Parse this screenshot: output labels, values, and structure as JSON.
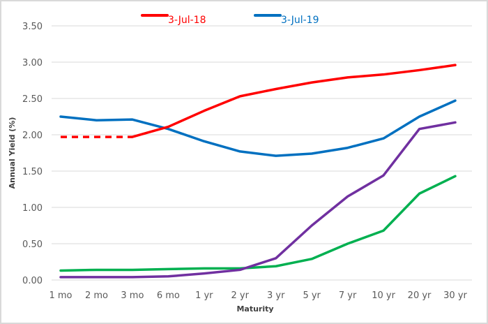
{
  "chart_data": {
    "type": "line",
    "title": "",
    "xlabel": "Maturity",
    "ylabel": "Annual Yield (%)",
    "ylim": [
      0,
      3.5
    ],
    "yticks": [
      "0.00",
      "0.50",
      "1.00",
      "1.50",
      "2.00",
      "2.50",
      "3.00",
      "3.50"
    ],
    "grid": true,
    "legend_position": "top",
    "categories": [
      "1 mo",
      "2 mo",
      "3 mo",
      "6 mo",
      "1 yr",
      "2 yr",
      "3 yr",
      "5 yr",
      "7 yr",
      "10 yr",
      "20 yr",
      "30 yr"
    ],
    "series": [
      {
        "name": "3-Jul-18",
        "color": "#ff0000",
        "in_legend": true,
        "values": [
          1.97,
          1.97,
          1.97,
          2.11,
          2.33,
          2.53,
          2.63,
          2.72,
          2.79,
          2.83,
          2.89,
          2.96
        ],
        "dashed_segments_until_index": 2
      },
      {
        "name": "3-Jul-19",
        "color": "#0070c0",
        "in_legend": true,
        "values": [
          2.25,
          2.2,
          2.21,
          2.08,
          1.91,
          1.77,
          1.71,
          1.74,
          1.82,
          1.95,
          2.25,
          2.47
        ]
      },
      {
        "name": "",
        "color": "#7030a0",
        "in_legend": false,
        "values": [
          0.04,
          0.04,
          0.04,
          0.05,
          0.09,
          0.14,
          0.3,
          0.75,
          1.15,
          1.44,
          2.08,
          2.17
        ]
      },
      {
        "name": "",
        "color": "#00b050",
        "in_legend": false,
        "values": [
          0.13,
          0.14,
          0.14,
          0.15,
          0.16,
          0.16,
          0.19,
          0.29,
          0.5,
          0.68,
          1.19,
          1.43
        ]
      }
    ]
  },
  "legend": [
    {
      "label": "3-Jul-18",
      "color": "#ff0000"
    },
    {
      "label": "3-Jul-19",
      "color": "#0070c0"
    }
  ],
  "axes": {
    "x_title": "Maturity",
    "y_title": "Annual Yield (%)"
  }
}
